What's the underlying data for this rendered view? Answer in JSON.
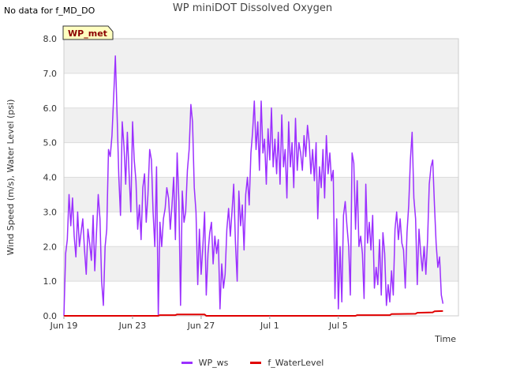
{
  "header": {
    "nodata": "No data for f_MD_DO",
    "title": "WP miniDOT Dissolved Oxygen",
    "station_tag": "WP_met"
  },
  "colors": {
    "band": "#f0f0f0",
    "grid": "#dcdcdc",
    "tag_bg": "#ffffc0",
    "tag_text": "#8b0000",
    "wp_ws": "#9b30ff",
    "water": "#e00000"
  },
  "chart_data": {
    "type": "line",
    "title": "WP miniDOT Dissolved Oxygen",
    "xlabel": "Time",
    "ylabel": "Wind Speed (m/s), Water Level (psi)",
    "x_unit": "days since Jun 19",
    "xlim": [
      0,
      23.0
    ],
    "ylim": [
      0,
      8
    ],
    "yticks": [
      0,
      1,
      2,
      3,
      4,
      5,
      6,
      7,
      8
    ],
    "ytick_labels": [
      "0.0",
      "1.0",
      "2.0",
      "3.0",
      "4.0",
      "5.0",
      "6.0",
      "7.0",
      "8.0"
    ],
    "xticks": [
      0,
      4,
      8,
      12,
      16
    ],
    "xtick_labels": [
      "Jun 19",
      "Jun 23",
      "Jun 27",
      "Jul 1",
      "Jul 5"
    ],
    "grid": true,
    "legend_position": "bottom",
    "series": [
      {
        "name": "WP_ws",
        "color": "#9b30ff",
        "x": [
          0.0,
          0.1,
          0.2,
          0.3,
          0.4,
          0.5,
          0.6,
          0.7,
          0.8,
          0.9,
          1.0,
          1.1,
          1.2,
          1.3,
          1.4,
          1.5,
          1.6,
          1.7,
          1.8,
          1.9,
          2.0,
          2.1,
          2.2,
          2.3,
          2.4,
          2.5,
          2.6,
          2.7,
          2.8,
          2.9,
          3.0,
          3.1,
          3.2,
          3.3,
          3.4,
          3.5,
          3.6,
          3.7,
          3.8,
          3.9,
          4.0,
          4.1,
          4.2,
          4.3,
          4.4,
          4.5,
          4.6,
          4.7,
          4.8,
          4.9,
          5.0,
          5.1,
          5.2,
          5.3,
          5.4,
          5.5,
          5.6,
          5.7,
          5.8,
          5.9,
          6.0,
          6.1,
          6.2,
          6.3,
          6.4,
          6.5,
          6.6,
          6.7,
          6.8,
          6.9,
          7.0,
          7.1,
          7.2,
          7.3,
          7.4,
          7.5,
          7.6,
          7.7,
          7.8,
          7.9,
          8.0,
          8.1,
          8.2,
          8.3,
          8.4,
          8.5,
          8.6,
          8.7,
          8.8,
          8.9,
          9.0,
          9.1,
          9.2,
          9.3,
          9.4,
          9.5,
          9.6,
          9.7,
          9.8,
          9.9,
          10.0,
          10.1,
          10.2,
          10.3,
          10.4,
          10.5,
          10.6,
          10.7,
          10.8,
          10.9,
          11.0,
          11.1,
          11.2,
          11.3,
          11.4,
          11.5,
          11.6,
          11.7,
          11.8,
          11.9,
          12.0,
          12.1,
          12.2,
          12.3,
          12.4,
          12.5,
          12.6,
          12.7,
          12.8,
          12.9,
          13.0,
          13.1,
          13.2,
          13.3,
          13.4,
          13.5,
          13.6,
          13.7,
          13.8,
          13.9,
          14.0,
          14.1,
          14.2,
          14.3,
          14.4,
          14.5,
          14.6,
          14.7,
          14.8,
          14.9,
          15.0,
          15.1,
          15.2,
          15.3,
          15.4,
          15.5,
          15.6,
          15.7,
          15.8,
          15.9,
          16.0,
          16.1,
          16.2,
          16.3,
          16.4,
          16.5,
          16.6,
          16.7,
          16.8,
          16.9,
          17.0,
          17.1,
          17.2,
          17.3,
          17.4,
          17.5,
          17.6,
          17.7,
          17.8,
          17.9,
          18.0,
          18.1,
          18.2,
          18.3,
          18.4,
          18.5,
          18.6,
          18.7,
          18.8,
          18.9,
          19.0,
          19.1,
          19.2,
          19.3,
          19.4,
          19.5,
          19.6,
          19.7,
          19.8,
          19.9,
          20.0,
          20.1,
          20.2,
          20.3,
          20.4,
          20.5,
          20.6,
          20.7,
          20.8,
          20.9,
          21.0,
          21.1,
          21.2,
          21.3,
          21.4,
          21.5,
          21.6,
          21.7,
          21.8,
          21.9,
          22.0,
          22.1
        ],
        "y": [
          0.0,
          1.8,
          2.2,
          3.5,
          2.6,
          3.4,
          2.3,
          1.7,
          3.0,
          2.0,
          2.4,
          2.8,
          1.9,
          1.2,
          2.5,
          2.1,
          1.6,
          2.9,
          1.3,
          2.4,
          3.5,
          2.8,
          1.0,
          0.3,
          2.0,
          2.5,
          4.8,
          4.6,
          5.2,
          6.3,
          7.5,
          5.8,
          4.0,
          2.9,
          5.6,
          4.9,
          3.8,
          5.3,
          4.1,
          3.0,
          5.6,
          4.5,
          3.9,
          2.5,
          3.2,
          2.2,
          3.7,
          4.1,
          2.7,
          3.5,
          4.8,
          4.5,
          3.0,
          2.0,
          4.3,
          0.0,
          2.7,
          2.0,
          2.8,
          3.1,
          3.7,
          3.4,
          2.5,
          3.2,
          4.0,
          2.2,
          4.7,
          3.3,
          0.3,
          3.6,
          2.7,
          3.0,
          4.2,
          4.8,
          6.1,
          5.6,
          3.7,
          3.0,
          0.9,
          2.5,
          1.2,
          2.0,
          3.0,
          0.6,
          1.8,
          2.4,
          2.7,
          1.5,
          2.3,
          1.8,
          2.2,
          0.2,
          1.5,
          0.8,
          1.2,
          2.5,
          3.1,
          2.3,
          3.0,
          3.8,
          2.1,
          1.0,
          3.6,
          2.6,
          3.2,
          1.9,
          3.5,
          4.0,
          3.2,
          4.7,
          5.3,
          6.2,
          4.8,
          5.6,
          4.2,
          6.2,
          4.7,
          5.1,
          3.8,
          5.4,
          4.5,
          6.0,
          4.3,
          5.1,
          4.1,
          5.3,
          3.8,
          5.8,
          4.3,
          4.8,
          3.4,
          5.6,
          4.3,
          5.0,
          3.7,
          5.7,
          4.2,
          5.0,
          4.7,
          4.2,
          5.2,
          4.6,
          5.5,
          5.0,
          4.1,
          4.8,
          3.9,
          5.0,
          2.8,
          4.3,
          3.7,
          4.8,
          3.4,
          5.2,
          4.1,
          4.7,
          3.9,
          4.2,
          0.5,
          2.8,
          0.2,
          2.0,
          0.4,
          2.9,
          3.3,
          2.6,
          2.0,
          0.6,
          4.7,
          4.4,
          2.5,
          3.9,
          2.0,
          2.3,
          1.8,
          0.5,
          3.8,
          2.1,
          2.7,
          1.9,
          2.9,
          0.8,
          1.4,
          0.9,
          2.2,
          0.6,
          2.4,
          1.8,
          0.3,
          0.9,
          0.4,
          1.3,
          0.6,
          2.5,
          3.0,
          2.2,
          2.8,
          2.1,
          1.9,
          0.8,
          2.4,
          3.2,
          4.5,
          5.3,
          3.4,
          2.8,
          0.9,
          2.5,
          1.8,
          1.3,
          2.0,
          1.2,
          2.2,
          3.8,
          4.3,
          4.5,
          3.2,
          2.1,
          1.4,
          1.7,
          0.6,
          0.35
        ],
        "label": "WP_ws"
      },
      {
        "name": "f_WaterLevel",
        "color": "#e00000",
        "x": [
          0,
          5.5,
          5.6,
          6.5,
          6.6,
          8.2,
          8.3,
          17.0,
          17.1,
          19.0,
          19.1,
          20.5,
          20.6,
          21.5,
          21.6,
          22.1
        ],
        "y": [
          0,
          0,
          0.02,
          0.02,
          0.04,
          0.04,
          0.0,
          0.0,
          0.02,
          0.02,
          0.05,
          0.06,
          0.09,
          0.1,
          0.13,
          0.14
        ],
        "label": "f_WaterLevel"
      }
    ]
  }
}
